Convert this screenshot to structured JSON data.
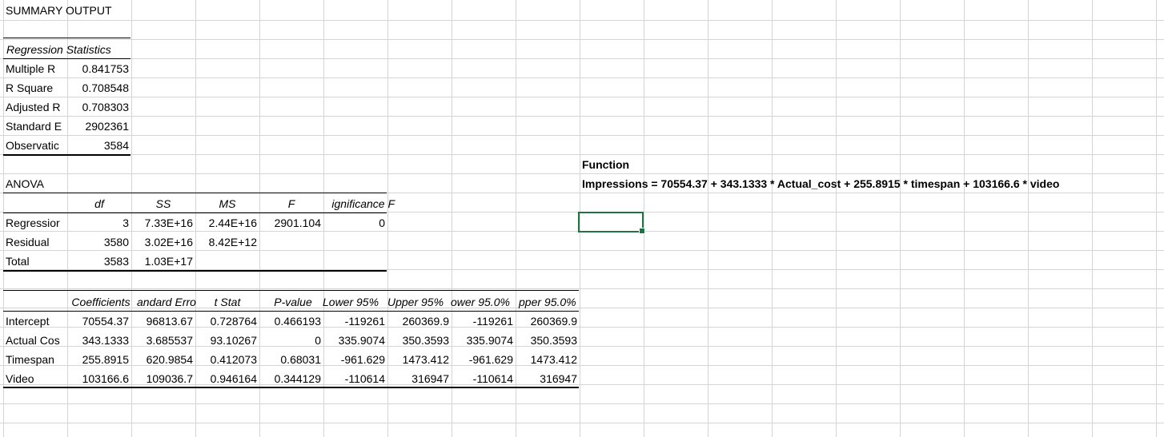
{
  "sheet": {
    "summary_title": "SUMMARY OUTPUT",
    "regression_statistics": {
      "header": "Regression Statistics",
      "rows": [
        {
          "label": "Multiple R",
          "value": "0.841753"
        },
        {
          "label": "R Square",
          "value": "0.708548"
        },
        {
          "label": "Adjusted R",
          "value": "0.708303"
        },
        {
          "label": "Standard E",
          "value": "2902361"
        },
        {
          "label": "Observatic",
          "value": "3584"
        }
      ]
    },
    "anova": {
      "title": "ANOVA",
      "headers": [
        "",
        "df",
        "SS",
        "MS",
        "F",
        "ignificance F"
      ],
      "rows": [
        [
          "Regressior",
          "3",
          "7.33E+16",
          "2.44E+16",
          "2901.104",
          "0"
        ],
        [
          "Residual",
          "3580",
          "3.02E+16",
          "8.42E+12",
          "",
          ""
        ],
        [
          "Total",
          "3583",
          "1.03E+17",
          "",
          "",
          ""
        ]
      ]
    },
    "coefficients": {
      "headers": [
        "",
        "Coefficients",
        "andard Erro",
        "t Stat",
        "P-value",
        "Lower 95%",
        "Upper 95%",
        "ower 95.0%",
        "pper 95.0%"
      ],
      "rows": [
        [
          "Intercept",
          "70554.37",
          "96813.67",
          "0.728764",
          "0.466193",
          "-119261",
          "260369.9",
          "-119261",
          "260369.9"
        ],
        [
          "Actual Cos",
          "343.1333",
          "3.685537",
          "93.10267",
          "0",
          "335.9074",
          "350.3593",
          "335.9074",
          "350.3593"
        ],
        [
          "Timespan",
          "255.8915",
          "620.9854",
          "0.412073",
          "0.68031",
          "-961.629",
          "1473.412",
          "-961.629",
          "1473.412"
        ],
        [
          "Video",
          "103166.6",
          "109036.7",
          "0.946164",
          "0.344129",
          "-110614",
          "316947",
          "-110614",
          "316947"
        ]
      ]
    },
    "function": {
      "label": "Function",
      "equation": "Impressions = 70554.37 + 343.1333 * Actual_cost + 255.8915 * timespan + 103166.6 * video"
    }
  },
  "colors": {
    "gridline": "#d4d4d4",
    "selection": "#217346"
  }
}
